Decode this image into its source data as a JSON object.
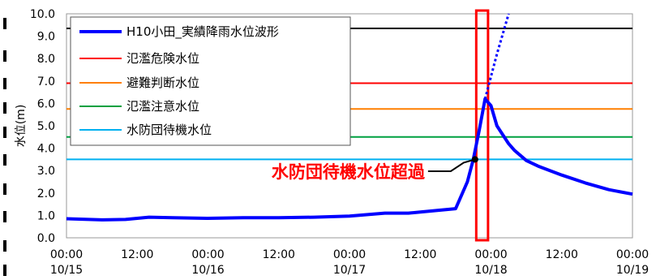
{
  "chart_data": {
    "type": "line",
    "title": "",
    "xlabel": "",
    "ylabel": "水位(m)",
    "ylim": [
      0.0,
      10.0
    ],
    "yticks": [
      "0.0",
      "1.0",
      "2.0",
      "3.0",
      "4.0",
      "5.0",
      "6.0",
      "7.0",
      "8.0",
      "9.0",
      "10.0"
    ],
    "xlim": [
      0,
      96
    ],
    "x_unit": "hours from 10/15 00:00",
    "xticks": [
      {
        "time": "00:00",
        "date": "10/15"
      },
      {
        "time": "12:00",
        "date": ""
      },
      {
        "time": "00:00",
        "date": "10/16"
      },
      {
        "time": "12:00",
        "date": ""
      },
      {
        "time": "00:00",
        "date": "10/17"
      },
      {
        "time": "12:00",
        "date": ""
      },
      {
        "time": "00:00",
        "date": "10/18"
      },
      {
        "time": "12:00",
        "date": ""
      },
      {
        "time": "00:00",
        "date": "10/19"
      }
    ],
    "grid": false,
    "legend_position": "top-left",
    "series": [
      {
        "name": "H10小田_実績降雨水位波形",
        "color": "#0000ff",
        "style": "solid",
        "x": [
          0,
          6,
          10,
          14,
          18,
          24,
          30,
          36,
          42,
          48,
          54,
          58,
          62,
          66,
          68,
          69,
          70,
          71,
          72,
          73,
          74,
          75,
          76,
          78,
          80,
          82,
          84,
          88,
          92,
          96
        ],
        "y": [
          0.85,
          0.8,
          0.82,
          0.92,
          0.9,
          0.87,
          0.9,
          0.9,
          0.92,
          0.97,
          1.1,
          1.1,
          1.2,
          1.3,
          2.5,
          3.5,
          4.8,
          6.2,
          5.9,
          5.0,
          4.6,
          4.2,
          3.9,
          3.45,
          3.2,
          3.0,
          2.8,
          2.45,
          2.15,
          1.95
        ]
      },
      {
        "name": "",
        "color": "#0000ff",
        "style": "dotted",
        "x": [
          71,
          73,
          75
        ],
        "y": [
          6.2,
          8.2,
          10.0
        ]
      }
    ],
    "reference_lines": [
      {
        "name": "",
        "value": 9.35,
        "color": "#000000"
      },
      {
        "name": "氾濫危険水位",
        "value": 6.9,
        "color": "#ff0000"
      },
      {
        "name": "避難判断水位",
        "value": 5.75,
        "color": "#ff7f00"
      },
      {
        "name": "氾濫注意水位",
        "value": 4.5,
        "color": "#00a040"
      },
      {
        "name": "水防団待機水位",
        "value": 3.5,
        "color": "#00b0f0"
      }
    ],
    "highlight_band": {
      "x_start": 69.5,
      "x_end": 71.5,
      "color": "#ff0000"
    },
    "annotations": [
      {
        "text": "水防団待機水位超過",
        "point_x": 69.3,
        "point_y": 3.5,
        "color": "#ff0000"
      }
    ]
  }
}
